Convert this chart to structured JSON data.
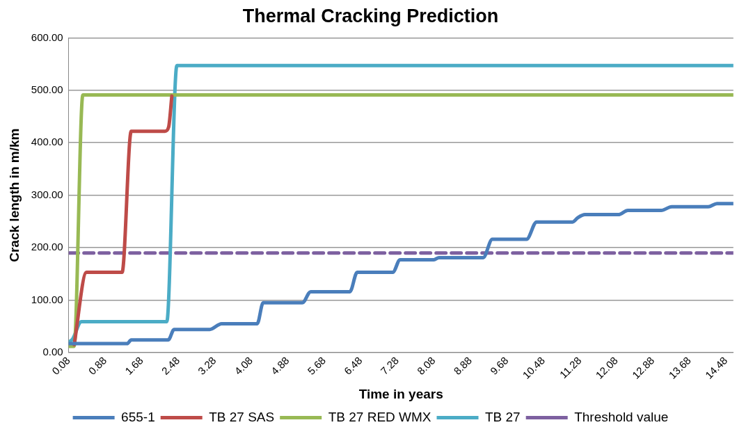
{
  "chart_data": {
    "type": "line",
    "title": "Thermal Cracking Prediction",
    "xlabel": "Time in years",
    "ylabel": "Crack length in m/km",
    "xlim": [
      0.08,
      14.64
    ],
    "xticks": [
      0.08,
      0.88,
      1.68,
      2.48,
      3.28,
      4.08,
      4.88,
      5.68,
      6.48,
      7.28,
      8.08,
      8.88,
      9.68,
      10.48,
      11.28,
      12.08,
      12.88,
      13.68,
      14.48
    ],
    "ylim": [
      0,
      600
    ],
    "yticks": [
      {
        "value": 0,
        "label": "0.00"
      },
      {
        "value": 100,
        "label": "100.00"
      },
      {
        "value": 200,
        "label": "200.00"
      },
      {
        "value": 300,
        "label": "300.00"
      },
      {
        "value": 400,
        "label": "400.00"
      },
      {
        "value": 500,
        "label": "500.00"
      },
      {
        "value": 600,
        "label": "600.00"
      }
    ],
    "grid": "y",
    "legend": "bottom",
    "marker": "none",
    "series": [
      {
        "name": "655-1",
        "color": "#4a7ebb",
        "x": [
          0.08,
          1.36,
          1.45,
          2.26,
          2.39,
          3.17,
          3.43,
          4.21,
          4.34,
          5.2,
          5.38,
          6.24,
          6.4,
          7.18,
          7.34,
          8.08,
          8.19,
          9.16,
          9.36,
          10.11,
          10.33,
          11.12,
          11.23,
          11.39,
          12.12,
          12.33,
          13.06,
          13.29,
          14.09,
          14.28,
          14.64
        ],
        "values": [
          17,
          17,
          24,
          24,
          44,
          44,
          55,
          55,
          95,
          95,
          116,
          116,
          153,
          153,
          177,
          177,
          181,
          181,
          216,
          216,
          249,
          249,
          257,
          263,
          263,
          271,
          271,
          278,
          278,
          284,
          284
        ]
      },
      {
        "name": "TB 27 SAS",
        "color": "#be4b48",
        "x": [
          0.2,
          0.47,
          1.25,
          1.45,
          2.19,
          2.27,
          2.34
        ],
        "values": [
          15,
          153,
          153,
          422,
          422,
          430,
          489
        ]
      },
      {
        "name": "TB 27 RED WMX",
        "color": "#98b954",
        "x": [
          0.08,
          0.2,
          0.39,
          14.64
        ],
        "values": [
          12,
          12,
          491,
          491
        ]
      },
      {
        "name": "TB 27",
        "color": "#4bacc6",
        "x": [
          0.08,
          0.16,
          0.36,
          2.23,
          2.45,
          14.64
        ],
        "values": [
          20,
          25,
          59,
          59,
          547,
          547
        ]
      },
      {
        "name": "Threshold value",
        "color": "#7d60a0",
        "line_style": "dashed",
        "x": [
          0.08,
          14.64
        ],
        "values": [
          190,
          190
        ]
      }
    ]
  }
}
